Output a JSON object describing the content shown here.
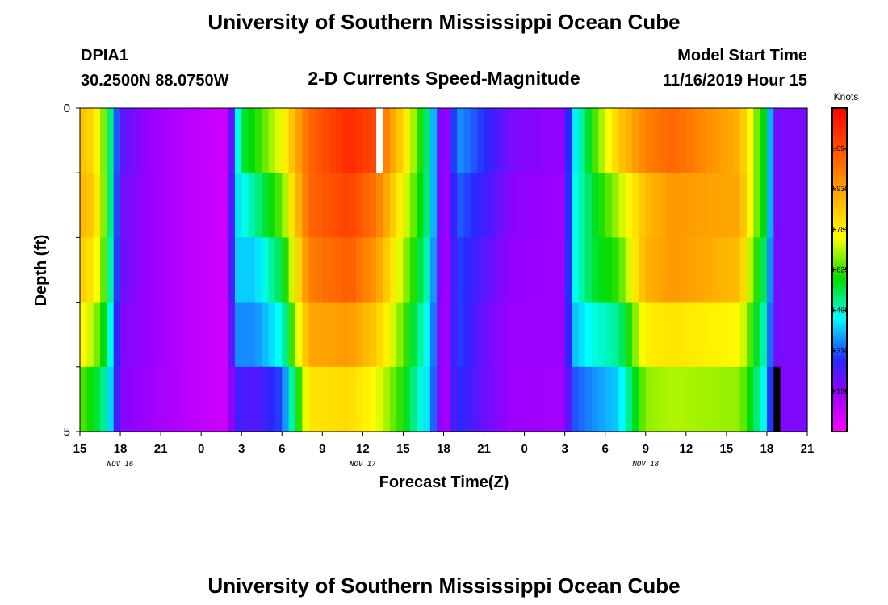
{
  "header": {
    "title": "University of Southern Mississippi Ocean Cube",
    "station": "DPIA1",
    "coords": "30.2500N 88.0750W",
    "product": "2-D Currents Speed-Magnitude",
    "model_label": "Model Start Time",
    "model_time": "11/16/2019 Hour 15"
  },
  "footer": {
    "title": "University of Southern Mississippi Ocean Cube"
  },
  "chart_data": {
    "type": "heatmap",
    "title": "2-D Currents Speed-Magnitude",
    "xlabel": "Forecast Time(Z)",
    "ylabel": "Depth (ft)",
    "colorbar_label": "Knots",
    "x_tick_labels": [
      "15",
      "18",
      "21",
      "0",
      "3",
      "6",
      "9",
      "12",
      "15",
      "18",
      "21",
      "0",
      "3",
      "6",
      "9",
      "12",
      "15",
      "18",
      "21"
    ],
    "date_labels": [
      {
        "label": "NOV  16",
        "at_tick": 1
      },
      {
        "label": "NOV  17",
        "at_tick": 7
      },
      {
        "label": "NOV  18",
        "at_tick": 14
      }
    ],
    "y_tick_labels": [
      {
        "value": 0,
        "label": "0"
      },
      {
        "value": 1,
        "label": ""
      },
      {
        "value": 2,
        "label": ""
      },
      {
        "value": 3,
        "label": ""
      },
      {
        "value": 4,
        "label": ""
      },
      {
        "value": 5,
        "label": "5"
      }
    ],
    "x_range_hours": [
      0,
      54
    ],
    "y_range": [
      0,
      5
    ],
    "colorbar": {
      "range": [
        0,
        1.25
      ],
      "ticks": [
        0.156,
        0.312,
        0.469,
        0.625,
        0.781,
        0.938,
        1.094
      ]
    },
    "time_step_hours": 0.5,
    "layers": 5,
    "layer_keypoints": [
      [
        [
          0,
          0.88
        ],
        [
          1,
          0.82
        ],
        [
          2,
          0.62
        ],
        [
          2.5,
          0.4
        ],
        [
          3,
          0.22
        ],
        [
          5,
          0.15
        ],
        [
          8,
          0.1
        ],
        [
          11,
          0.07
        ],
        [
          11.5,
          0.35
        ],
        [
          12,
          0.55
        ],
        [
          13,
          0.6
        ],
        [
          15,
          0.75
        ],
        [
          17,
          1.05
        ],
        [
          20,
          1.17
        ],
        [
          22,
          1.1
        ],
        [
          24,
          0.82
        ],
        [
          25,
          0.65
        ],
        [
          26,
          0.48
        ],
        [
          27,
          0.08
        ],
        [
          28,
          0.36
        ],
        [
          30,
          0.28
        ],
        [
          32,
          0.18
        ],
        [
          36,
          0.15
        ],
        [
          36.5,
          0.4
        ],
        [
          37,
          0.45
        ],
        [
          38,
          0.6
        ],
        [
          40,
          0.85
        ],
        [
          42,
          1.0
        ],
        [
          44,
          1.05
        ],
        [
          49,
          0.9
        ],
        [
          50,
          0.7
        ],
        [
          51,
          0.55
        ],
        [
          51.5,
          0.2
        ],
        [
          52,
          0.18
        ],
        [
          54,
          0.18
        ]
      ],
      [
        [
          0,
          0.9
        ],
        [
          1,
          0.85
        ],
        [
          2,
          0.62
        ],
        [
          2.5,
          0.4
        ],
        [
          3,
          0.2
        ],
        [
          5,
          0.15
        ],
        [
          8,
          0.1
        ],
        [
          11,
          0.07
        ],
        [
          11.5,
          0.4
        ],
        [
          13,
          0.5
        ],
        [
          15,
          0.65
        ],
        [
          17,
          1.05
        ],
        [
          20,
          1.12
        ],
        [
          22,
          1.02
        ],
        [
          24,
          0.75
        ],
        [
          25,
          0.62
        ],
        [
          26,
          0.48
        ],
        [
          27,
          0.08
        ],
        [
          28,
          0.32
        ],
        [
          30,
          0.25
        ],
        [
          32,
          0.16
        ],
        [
          36,
          0.14
        ],
        [
          36.5,
          0.42
        ],
        [
          38,
          0.55
        ],
        [
          40,
          0.7
        ],
        [
          42,
          0.88
        ],
        [
          44,
          0.95
        ],
        [
          49,
          0.92
        ],
        [
          50,
          0.7
        ],
        [
          51,
          0.55
        ],
        [
          51.5,
          0.2
        ],
        [
          52,
          0.18
        ],
        [
          54,
          0.18
        ]
      ],
      [
        [
          0,
          0.85
        ],
        [
          1,
          0.8
        ],
        [
          2,
          0.6
        ],
        [
          2.5,
          0.38
        ],
        [
          3,
          0.2
        ],
        [
          5,
          0.15
        ],
        [
          8,
          0.1
        ],
        [
          11,
          0.07
        ],
        [
          11.5,
          0.4
        ],
        [
          13,
          0.4
        ],
        [
          15,
          0.55
        ],
        [
          17,
          1.0
        ],
        [
          20,
          1.07
        ],
        [
          22,
          0.95
        ],
        [
          24,
          0.7
        ],
        [
          25,
          0.58
        ],
        [
          26,
          0.45
        ],
        [
          27,
          0.08
        ],
        [
          28,
          0.3
        ],
        [
          30,
          0.22
        ],
        [
          32,
          0.15
        ],
        [
          36,
          0.14
        ],
        [
          36.5,
          0.42
        ],
        [
          38,
          0.55
        ],
        [
          40,
          0.62
        ],
        [
          42,
          0.9
        ],
        [
          44,
          0.95
        ],
        [
          49,
          0.88
        ],
        [
          50,
          0.65
        ],
        [
          51,
          0.5
        ],
        [
          51.5,
          0.2
        ],
        [
          52,
          0.18
        ],
        [
          54,
          0.18
        ]
      ],
      [
        [
          0,
          0.78
        ],
        [
          1,
          0.7
        ],
        [
          2,
          0.55
        ],
        [
          2.5,
          0.35
        ],
        [
          3,
          0.18
        ],
        [
          5,
          0.15
        ],
        [
          8,
          0.1
        ],
        [
          11,
          0.07
        ],
        [
          11.5,
          0.35
        ],
        [
          13,
          0.35
        ],
        [
          15,
          0.45
        ],
        [
          17,
          0.92
        ],
        [
          20,
          0.95
        ],
        [
          22,
          0.85
        ],
        [
          24,
          0.65
        ],
        [
          25,
          0.52
        ],
        [
          26,
          0.42
        ],
        [
          27,
          0.08
        ],
        [
          28,
          0.3
        ],
        [
          30,
          0.2
        ],
        [
          32,
          0.14
        ],
        [
          36,
          0.14
        ],
        [
          36.5,
          0.38
        ],
        [
          38,
          0.45
        ],
        [
          40,
          0.5
        ],
        [
          42,
          0.78
        ],
        [
          44,
          0.8
        ],
        [
          49,
          0.76
        ],
        [
          50,
          0.6
        ],
        [
          51,
          0.45
        ],
        [
          51.5,
          0.2
        ],
        [
          52,
          0.18
        ],
        [
          54,
          0.18
        ]
      ],
      [
        [
          0,
          0.65
        ],
        [
          1,
          0.58
        ],
        [
          2,
          0.48
        ],
        [
          2.5,
          0.33
        ],
        [
          3,
          0.17
        ],
        [
          5,
          0.14
        ],
        [
          8,
          0.1
        ],
        [
          11,
          0.07
        ],
        [
          11.5,
          0.25
        ],
        [
          13,
          0.22
        ],
        [
          15,
          0.3
        ],
        [
          17,
          0.8
        ],
        [
          20,
          0.82
        ],
        [
          22,
          0.75
        ],
        [
          24,
          0.6
        ],
        [
          25,
          0.48
        ],
        [
          26,
          0.4
        ],
        [
          27,
          0.08
        ],
        [
          28,
          0.28
        ],
        [
          30,
          0.2
        ],
        [
          32,
          0.14
        ],
        [
          36,
          0.13
        ],
        [
          36.5,
          0.3
        ],
        [
          38,
          0.35
        ],
        [
          40,
          0.4
        ],
        [
          42,
          0.68
        ],
        [
          44,
          0.7
        ],
        [
          49,
          0.68
        ],
        [
          50,
          0.55
        ],
        [
          51,
          0.42
        ],
        [
          51.5,
          0.15
        ],
        [
          52,
          0.17
        ],
        [
          54,
          0.18
        ]
      ]
    ],
    "missing_cells": [
      {
        "layer": 0,
        "from_hour": 22,
        "to_hour": 22.5,
        "color": "#ffffff"
      },
      {
        "layer": 4,
        "from_hour": 51.5,
        "to_hour": 52,
        "color": "#000000"
      }
    ]
  }
}
